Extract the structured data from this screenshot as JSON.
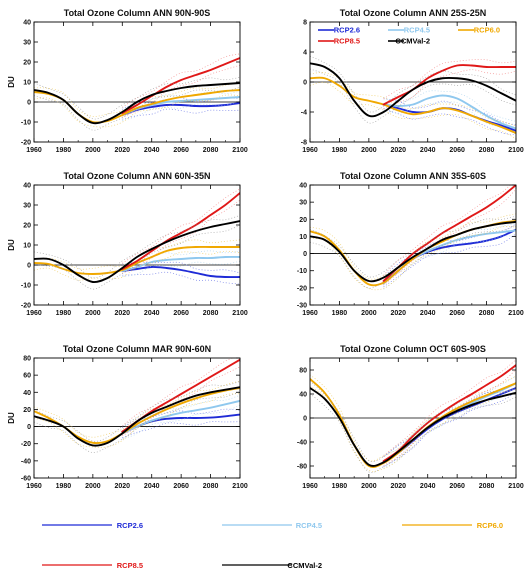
{
  "colors": {
    "RCP2.6": "#1f2bd6",
    "RCP4.5": "#8fc8ee",
    "RCP6.0": "#f0a800",
    "RCP8.5": "#e01818",
    "CCMVal-2": "#000000",
    "zero_line": "#000000"
  },
  "bottom_legend": [
    "RCP2.6",
    "RCP4.5",
    "RCP6.0",
    "RCP8.5",
    "CCMVal-2"
  ],
  "chart_data": [
    {
      "type": "line",
      "title": "Total Ozone Column ANN 90N-90S",
      "ylabel": "DU",
      "xlim": [
        1960,
        2100
      ],
      "ylim": [
        -20,
        40
      ],
      "xticks": [
        1960,
        1980,
        2000,
        2020,
        2040,
        2060,
        2080,
        2100
      ],
      "yticks": [
        -20,
        -10,
        0,
        10,
        20,
        30,
        40
      ],
      "series": [
        {
          "name": "RCP2.6",
          "x": [
            2020,
            2030,
            2040,
            2050,
            2060,
            2070,
            2080,
            2090,
            2100
          ],
          "values": [
            -6.5,
            -4,
            -2.5,
            -1.5,
            -1.5,
            -2,
            -2,
            -1.5,
            -0.5
          ]
        },
        {
          "name": "RCP4.5",
          "x": [
            2020,
            2030,
            2040,
            2050,
            2060,
            2070,
            2080,
            2090,
            2100
          ],
          "values": [
            -6.5,
            -3.5,
            -1.5,
            0,
            0.5,
            1,
            1.5,
            2,
            2.5
          ]
        },
        {
          "name": "RCP6.0",
          "x": [
            1960,
            1970,
            1980,
            1990,
            2000,
            2010,
            2020,
            2030,
            2040,
            2050,
            2060,
            2070,
            2080,
            2090,
            2100
          ],
          "values": [
            5,
            4,
            1,
            -6,
            -10,
            -9.5,
            -6.5,
            -3,
            -1,
            1,
            2.5,
            3.5,
            4.5,
            5.5,
            6
          ]
        },
        {
          "name": "RCP8.5",
          "x": [
            2020,
            2030,
            2040,
            2050,
            2060,
            2070,
            2080,
            2090,
            2100
          ],
          "values": [
            -5.5,
            -1.5,
            3,
            7.5,
            11,
            13.5,
            16,
            19,
            22
          ]
        },
        {
          "name": "CCMVal-2",
          "x": [
            1960,
            1970,
            1980,
            1990,
            2000,
            2010,
            2020,
            2030,
            2040,
            2050,
            2060,
            2070,
            2080,
            2090,
            2100
          ],
          "values": [
            6,
            4.5,
            1,
            -6,
            -10.5,
            -9,
            -5,
            0,
            3.5,
            5.5,
            7,
            8,
            8.5,
            9,
            9.5
          ]
        }
      ],
      "legend": null
    },
    {
      "type": "line",
      "title": "Total Ozone Column ANN 25S-25N",
      "ylabel": "",
      "xlim": [
        1960,
        2100
      ],
      "ylim": [
        -8,
        8
      ],
      "xticks": [
        1960,
        1980,
        2000,
        2020,
        2040,
        2060,
        2080,
        2100
      ],
      "yticks": [
        -8,
        -4,
        0,
        4,
        8
      ],
      "series": [
        {
          "name": "RCP2.6",
          "x": [
            2010,
            2020,
            2030,
            2040,
            2050,
            2060,
            2070,
            2080,
            2090,
            2100
          ],
          "values": [
            -3,
            -3.5,
            -4,
            -4,
            -3.5,
            -3.7,
            -4.5,
            -5.2,
            -5.8,
            -6.5
          ]
        },
        {
          "name": "RCP4.5",
          "x": [
            2010,
            2020,
            2030,
            2040,
            2050,
            2060,
            2070,
            2080,
            2090,
            2100
          ],
          "values": [
            -3,
            -3.2,
            -3,
            -2.2,
            -1.8,
            -2.2,
            -3.3,
            -4.5,
            -5.5,
            -6.2
          ]
        },
        {
          "name": "RCP6.0",
          "x": [
            1960,
            1970,
            1980,
            1990,
            2000,
            2010,
            2020,
            2030,
            2040,
            2050,
            2060,
            2070,
            2080,
            2090,
            2100
          ],
          "values": [
            0.5,
            0.5,
            -0.5,
            -2,
            -2.5,
            -3,
            -3.8,
            -4.3,
            -4,
            -3.5,
            -3.8,
            -4.5,
            -5.3,
            -6,
            -6.8
          ]
        },
        {
          "name": "RCP8.5",
          "x": [
            2010,
            2020,
            2030,
            2040,
            2050,
            2060,
            2070,
            2080,
            2090,
            2100
          ],
          "values": [
            -3,
            -2,
            -1,
            0.5,
            1.5,
            2.2,
            2.2,
            2,
            2,
            2
          ]
        },
        {
          "name": "CCMVal-2",
          "x": [
            1960,
            1970,
            1980,
            1990,
            2000,
            2010,
            2020,
            2030,
            2040,
            2050,
            2060,
            2070,
            2080,
            2090,
            2100
          ],
          "values": [
            2.5,
            2,
            0.5,
            -2.5,
            -4.5,
            -4,
            -2.5,
            -1,
            0,
            0.5,
            0.5,
            0.2,
            -0.5,
            -1.5,
            -2.5
          ]
        }
      ],
      "legend": [
        "RCP2.6",
        "RCP4.5",
        "RCP6.0",
        "RCP8.5",
        "CCMVal-2"
      ]
    },
    {
      "type": "line",
      "title": "Total Ozone Column ANN 60N-35N",
      "ylabel": "DU",
      "xlim": [
        1960,
        2100
      ],
      "ylim": [
        -20,
        40
      ],
      "xticks": [
        1960,
        1980,
        2000,
        2020,
        2040,
        2060,
        2080,
        2100
      ],
      "yticks": [
        -20,
        -10,
        0,
        10,
        20,
        30,
        40
      ],
      "series": [
        {
          "name": "RCP2.6",
          "x": [
            2020,
            2030,
            2040,
            2050,
            2060,
            2070,
            2080,
            2090,
            2100
          ],
          "values": [
            -3,
            -2,
            -1,
            -1.5,
            -2.5,
            -4,
            -5.5,
            -6,
            -6
          ]
        },
        {
          "name": "RCP4.5",
          "x": [
            2020,
            2030,
            2040,
            2050,
            2060,
            2070,
            2080,
            2090,
            2100
          ],
          "values": [
            -3,
            -1,
            1.5,
            2.5,
            3,
            3.5,
            3.5,
            4,
            4
          ]
        },
        {
          "name": "RCP6.0",
          "x": [
            1960,
            1970,
            1980,
            1990,
            2000,
            2010,
            2020,
            2030,
            2040,
            2050,
            2060,
            2070,
            2080,
            2090,
            2100
          ],
          "values": [
            1,
            0.5,
            -2,
            -4,
            -4.5,
            -4,
            -2.5,
            1,
            4,
            7,
            8.5,
            9,
            9,
            9,
            9
          ]
        },
        {
          "name": "RCP8.5",
          "x": [
            2020,
            2030,
            2040,
            2050,
            2060,
            2070,
            2080,
            2090,
            2100
          ],
          "values": [
            -2,
            2,
            7,
            12,
            16,
            20,
            25,
            30,
            36
          ]
        },
        {
          "name": "CCMVal-2",
          "x": [
            1960,
            1970,
            1980,
            1990,
            2000,
            2010,
            2020,
            2030,
            2040,
            2050,
            2060,
            2070,
            2080,
            2090,
            2100
          ],
          "values": [
            3,
            3,
            0,
            -5,
            -8.5,
            -6.5,
            -1.5,
            4,
            8,
            11.5,
            14.5,
            17,
            19,
            20.5,
            22
          ]
        }
      ],
      "legend": null
    },
    {
      "type": "line",
      "title": "Total Ozone Column ANN 35S-60S",
      "ylabel": "",
      "xlim": [
        1960,
        2100
      ],
      "ylim": [
        -30,
        40
      ],
      "xticks": [
        1960,
        1980,
        2000,
        2020,
        2040,
        2060,
        2080,
        2100
      ],
      "yticks": [
        -30,
        -20,
        -10,
        0,
        10,
        20,
        30,
        40
      ],
      "series": [
        {
          "name": "RCP2.6",
          "x": [
            2010,
            2020,
            2030,
            2040,
            2050,
            2060,
            2070,
            2080,
            2090,
            2100
          ],
          "values": [
            -17,
            -10,
            -3,
            1,
            3.5,
            5,
            6,
            7.5,
            10,
            14
          ]
        },
        {
          "name": "RCP4.5",
          "x": [
            2010,
            2020,
            2030,
            2040,
            2050,
            2060,
            2070,
            2080,
            2090,
            2100
          ],
          "values": [
            -17.5,
            -10,
            -3,
            1.5,
            5,
            8,
            10,
            11.5,
            12.5,
            13.5
          ]
        },
        {
          "name": "RCP6.0",
          "x": [
            1960,
            1970,
            1980,
            1990,
            2000,
            2010,
            2020,
            2030,
            2040,
            2050,
            2060,
            2070,
            2080,
            2090,
            2100
          ],
          "values": [
            13,
            10,
            2,
            -10,
            -18,
            -17,
            -10,
            -3,
            3,
            7,
            11,
            14,
            16,
            18,
            19
          ]
        },
        {
          "name": "RCP8.5",
          "x": [
            2010,
            2020,
            2030,
            2040,
            2050,
            2060,
            2070,
            2080,
            2090,
            2100
          ],
          "values": [
            -16,
            -8,
            0,
            6,
            12,
            17,
            22,
            27,
            33,
            40
          ]
        },
        {
          "name": "CCMVal-2",
          "x": [
            1960,
            1970,
            1980,
            1990,
            2000,
            2010,
            2020,
            2030,
            2040,
            2050,
            2060,
            2070,
            2080,
            2090,
            2100
          ],
          "values": [
            10,
            8,
            1,
            -10,
            -16,
            -14,
            -8,
            -2,
            3,
            8,
            11,
            14,
            16,
            17.5,
            18.5
          ]
        }
      ],
      "legend": null
    },
    {
      "type": "line",
      "title": "Total Ozone Column MAR 90N-60N",
      "ylabel": "DU",
      "xlim": [
        1960,
        2100
      ],
      "ylim": [
        -60,
        80
      ],
      "xticks": [
        1960,
        1980,
        2000,
        2020,
        2040,
        2060,
        2080,
        2100
      ],
      "yticks": [
        -60,
        -40,
        -20,
        0,
        20,
        40,
        60,
        80
      ],
      "series": [
        {
          "name": "RCP2.6",
          "x": [
            2020,
            2030,
            2040,
            2050,
            2060,
            2070,
            2080,
            2090,
            2100
          ],
          "values": [
            -8,
            0,
            6,
            9,
            10,
            10,
            10.5,
            12,
            14
          ]
        },
        {
          "name": "RCP4.5",
          "x": [
            2020,
            2030,
            2040,
            2050,
            2060,
            2070,
            2080,
            2090,
            2100
          ],
          "values": [
            -8,
            0,
            7,
            12,
            16,
            19,
            22,
            26,
            30
          ]
        },
        {
          "name": "RCP6.0",
          "x": [
            1960,
            1970,
            1980,
            1990,
            2000,
            2010,
            2020,
            2030,
            2040,
            2050,
            2060,
            2070,
            2080,
            2090,
            2100
          ],
          "values": [
            18,
            10,
            0,
            -12,
            -19,
            -17,
            -8,
            3,
            12,
            20,
            27,
            33,
            38,
            42,
            45
          ]
        },
        {
          "name": "RCP8.5",
          "x": [
            2020,
            2030,
            2040,
            2050,
            2060,
            2070,
            2080,
            2090,
            2100
          ],
          "values": [
            -6,
            6,
            18,
            28,
            38,
            48,
            58,
            68,
            78
          ]
        },
        {
          "name": "CCMVal-2",
          "x": [
            1960,
            1970,
            1980,
            1990,
            2000,
            2010,
            2020,
            2030,
            2040,
            2050,
            2060,
            2070,
            2080,
            2090,
            2100
          ],
          "values": [
            12,
            7,
            0,
            -14,
            -22,
            -19,
            -8,
            6,
            16,
            23,
            30,
            36,
            40,
            43,
            46
          ]
        }
      ],
      "legend": null
    },
    {
      "type": "line",
      "title": "Total Ozone Column OCT 60S-90S",
      "ylabel": "",
      "xlim": [
        1960,
        2100
      ],
      "ylim": [
        -100,
        100
      ],
      "xticks": [
        1960,
        1980,
        2000,
        2020,
        2040,
        2060,
        2080,
        2100
      ],
      "yticks": [
        -80,
        -40,
        0,
        40,
        80
      ],
      "series": [
        {
          "name": "RCP2.6",
          "x": [
            2010,
            2020,
            2030,
            2040,
            2050,
            2060,
            2070,
            2080,
            2090,
            2100
          ],
          "values": [
            -74,
            -58,
            -38,
            -18,
            -2,
            10,
            20,
            30,
            40,
            50
          ]
        },
        {
          "name": "RCP4.5",
          "x": [
            2010,
            2020,
            2030,
            2040,
            2050,
            2060,
            2070,
            2080,
            2090,
            2100
          ],
          "values": [
            -74,
            -58,
            -36,
            -16,
            0,
            14,
            25,
            36,
            46,
            58
          ]
        },
        {
          "name": "RCP6.0",
          "x": [
            1960,
            1970,
            1980,
            1990,
            2000,
            2010,
            2020,
            2030,
            2040,
            2050,
            2060,
            2070,
            2080,
            2090,
            2100
          ],
          "values": [
            65,
            42,
            5,
            -45,
            -80,
            -75,
            -58,
            -36,
            -15,
            2,
            16,
            28,
            38,
            48,
            58
          ]
        },
        {
          "name": "RCP8.5",
          "x": [
            2010,
            2020,
            2030,
            2040,
            2050,
            2060,
            2070,
            2080,
            2090,
            2100
          ],
          "values": [
            -72,
            -55,
            -30,
            -8,
            10,
            26,
            40,
            55,
            70,
            88
          ]
        },
        {
          "name": "CCMVal-2",
          "x": [
            1960,
            1970,
            1980,
            1990,
            2000,
            2010,
            2020,
            2030,
            2040,
            2050,
            2060,
            2070,
            2080,
            2090,
            2100
          ],
          "values": [
            50,
            32,
            0,
            -45,
            -78,
            -74,
            -56,
            -36,
            -16,
            0,
            12,
            22,
            30,
            36,
            42
          ]
        }
      ],
      "legend": null
    }
  ]
}
